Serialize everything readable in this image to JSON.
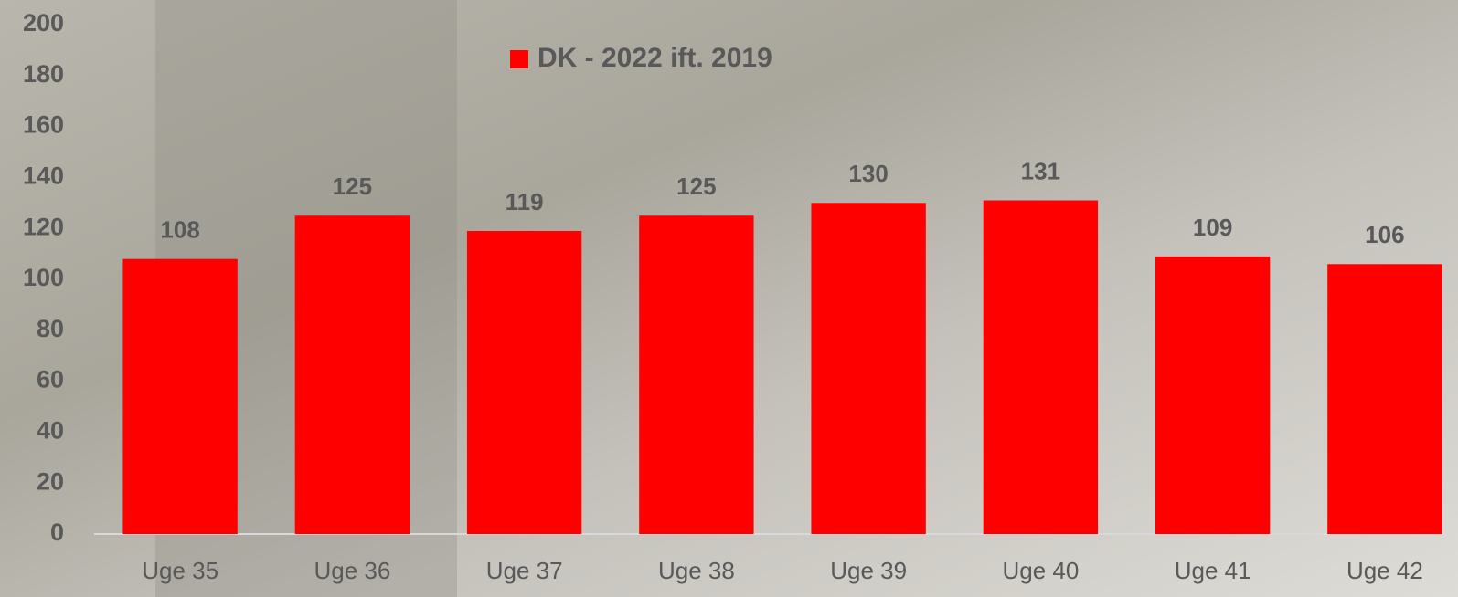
{
  "chart_data": {
    "type": "bar",
    "categories": [
      "Uge 35",
      "Uge 36",
      "Uge 37",
      "Uge 38",
      "Uge 39",
      "Uge 40",
      "Uge 41",
      "Uge 42"
    ],
    "series": [
      {
        "name": "DK - 2022 ift. 2019",
        "color": "#ff0000",
        "values": [
          108,
          125,
          119,
          125,
          130,
          131,
          109,
          106
        ]
      }
    ],
    "ylim": [
      0,
      200
    ],
    "yticks": [
      0,
      20,
      40,
      60,
      80,
      100,
      120,
      140,
      160,
      180,
      200
    ],
    "grid": false,
    "legend": "top"
  }
}
